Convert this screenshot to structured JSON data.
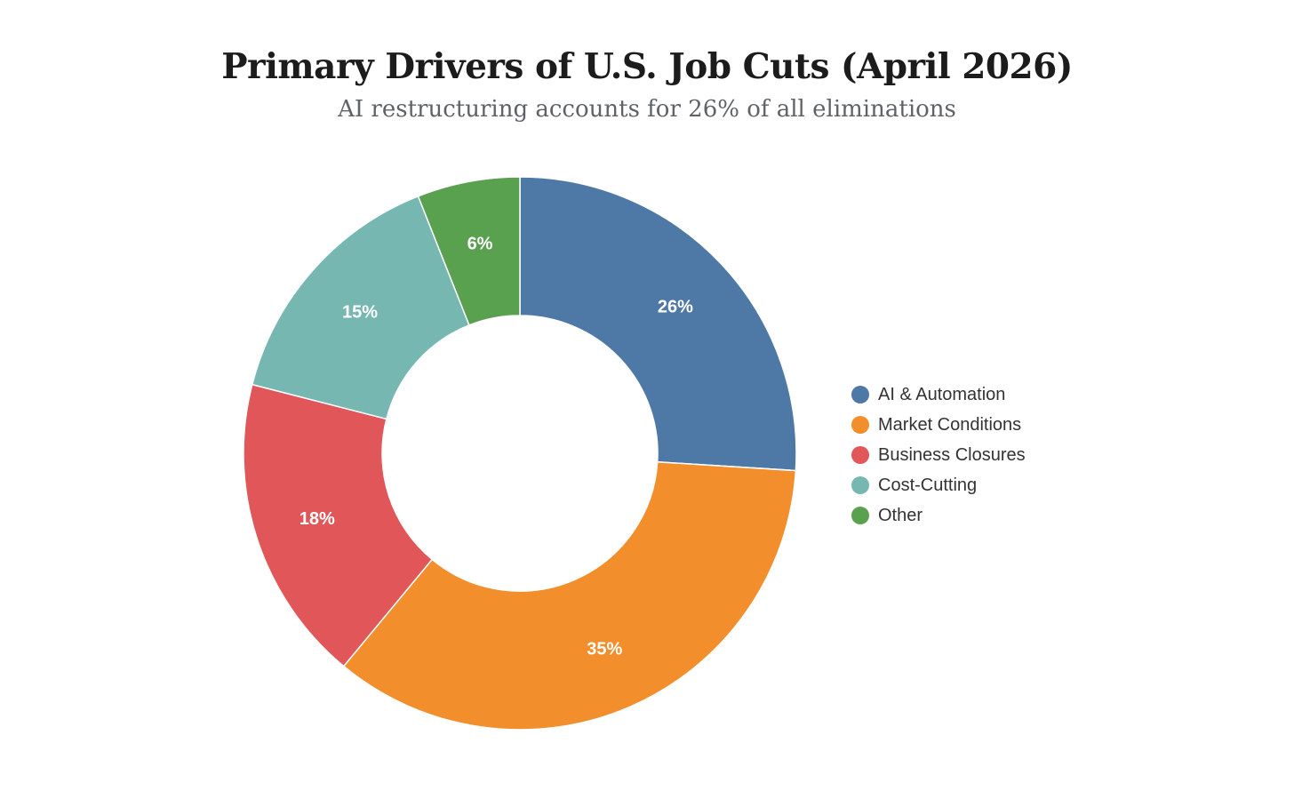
{
  "chart_data": {
    "type": "pie",
    "donut": true,
    "title": "Primary Drivers of U.S. Job Cuts (April 2026)",
    "subtitle": "AI restructuring accounts for 26% of all eliminations",
    "unit": "%",
    "legend_position": "right",
    "slices": [
      {
        "label": "AI & Automation",
        "value": 26,
        "color": "#4e78a6"
      },
      {
        "label": "Market Conditions",
        "value": 35,
        "color": "#f28e2c"
      },
      {
        "label": "Business Closures",
        "value": 18,
        "color": "#e15759"
      },
      {
        "label": "Cost-Cutting",
        "value": 15,
        "color": "#76b7b2"
      },
      {
        "label": "Other",
        "value": 6,
        "color": "#59a14f"
      }
    ]
  }
}
